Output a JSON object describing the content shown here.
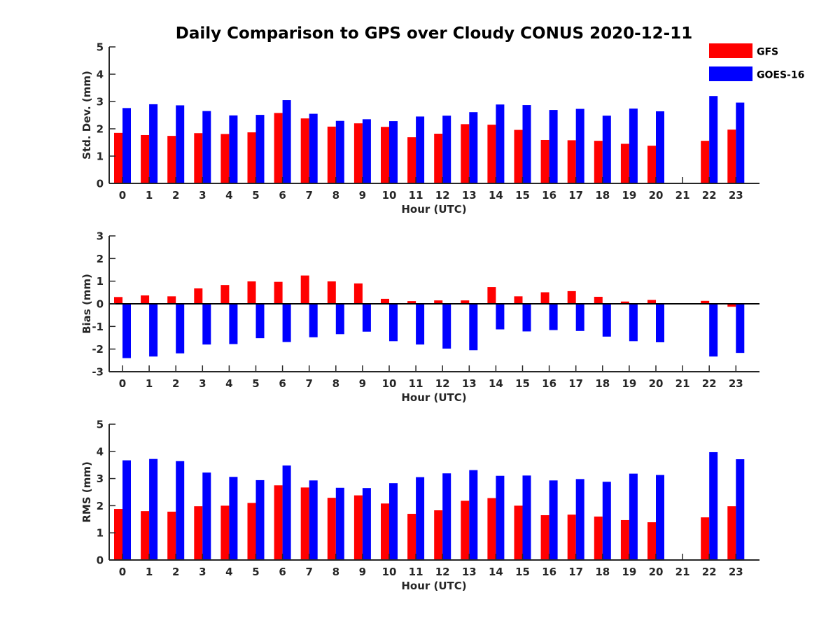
{
  "title": "Daily Comparison to GPS over Cloudy CONUS 2020-12-11",
  "colors": {
    "GFS": "#ff0000",
    "GOES-16": "#0000ff",
    "axis": "#262626"
  },
  "legend": {
    "entries": [
      "GFS",
      "GOES-16"
    ],
    "location": "top-right"
  },
  "chart_data": [
    {
      "type": "bar",
      "xlabel": "Hour (UTC)",
      "ylabel": "Std. Dev. (mm)",
      "ylim": [
        0,
        5
      ],
      "yticks": [
        "0",
        "1",
        "2",
        "3",
        "4",
        "5"
      ],
      "categories": [
        "0",
        "1",
        "2",
        "3",
        "4",
        "5",
        "6",
        "7",
        "8",
        "9",
        "10",
        "11",
        "12",
        "13",
        "14",
        "15",
        "16",
        "17",
        "18",
        "19",
        "20",
        "21",
        "22",
        "23"
      ],
      "series": [
        {
          "name": "GFS",
          "values": [
            1.85,
            1.77,
            1.74,
            1.84,
            1.81,
            1.87,
            2.58,
            2.38,
            2.08,
            2.2,
            2.07,
            1.69,
            1.82,
            2.17,
            2.15,
            1.96,
            1.59,
            1.58,
            1.56,
            1.45,
            1.38,
            null,
            1.56,
            1.97
          ]
        },
        {
          "name": "GOES-16",
          "values": [
            2.76,
            2.9,
            2.86,
            2.65,
            2.49,
            2.51,
            3.05,
            2.55,
            2.29,
            2.35,
            2.28,
            2.45,
            2.48,
            2.61,
            2.89,
            2.87,
            2.69,
            2.73,
            2.48,
            2.74,
            2.64,
            null,
            3.2,
            2.96
          ]
        }
      ],
      "grid": false
    },
    {
      "type": "bar",
      "xlabel": "Hour (UTC)",
      "ylabel": "Bias (mm)",
      "ylim": [
        -3,
        3
      ],
      "yticks": [
        "-3",
        "-2",
        "-1",
        "0",
        "1",
        "2",
        "3"
      ],
      "categories": [
        "0",
        "1",
        "2",
        "3",
        "4",
        "5",
        "6",
        "7",
        "8",
        "9",
        "10",
        "11",
        "12",
        "13",
        "14",
        "15",
        "16",
        "17",
        "18",
        "19",
        "20",
        "21",
        "22",
        "23"
      ],
      "series": [
        {
          "name": "GFS",
          "values": [
            0.3,
            0.37,
            0.33,
            0.68,
            0.83,
            0.99,
            0.97,
            1.25,
            0.99,
            0.9,
            0.22,
            0.12,
            0.15,
            0.15,
            0.74,
            0.33,
            0.51,
            0.56,
            0.31,
            0.1,
            0.17,
            null,
            0.13,
            -0.13
          ]
        },
        {
          "name": "GOES-16",
          "values": [
            -2.4,
            -2.33,
            -2.19,
            -1.8,
            -1.78,
            -1.52,
            -1.69,
            -1.48,
            -1.34,
            -1.23,
            -1.65,
            -1.8,
            -1.98,
            -2.05,
            -1.13,
            -1.22,
            -1.16,
            -1.2,
            -1.45,
            -1.65,
            -1.7,
            null,
            -2.33,
            -2.17
          ]
        }
      ],
      "grid": false
    },
    {
      "type": "bar",
      "xlabel": "Hour (UTC)",
      "ylabel": "RMS (mm)",
      "ylim": [
        0,
        5
      ],
      "yticks": [
        "0",
        "1",
        "2",
        "3",
        "4",
        "5"
      ],
      "categories": [
        "0",
        "1",
        "2",
        "3",
        "4",
        "5",
        "6",
        "7",
        "8",
        "9",
        "10",
        "11",
        "12",
        "13",
        "14",
        "15",
        "16",
        "17",
        "18",
        "19",
        "20",
        "21",
        "22",
        "23"
      ],
      "series": [
        {
          "name": "GFS",
          "values": [
            1.88,
            1.8,
            1.78,
            1.98,
            2.0,
            2.1,
            2.75,
            2.67,
            2.29,
            2.38,
            2.08,
            1.7,
            1.83,
            2.18,
            2.28,
            2.0,
            1.65,
            1.67,
            1.6,
            1.47,
            1.39,
            null,
            1.57,
            1.98
          ]
        },
        {
          "name": "GOES-16",
          "values": [
            3.67,
            3.72,
            3.64,
            3.22,
            3.06,
            2.94,
            3.48,
            2.93,
            2.66,
            2.65,
            2.83,
            3.05,
            3.19,
            3.31,
            3.1,
            3.11,
            2.93,
            2.98,
            2.88,
            3.18,
            3.13,
            null,
            3.97,
            3.71
          ]
        }
      ],
      "grid": false
    }
  ]
}
